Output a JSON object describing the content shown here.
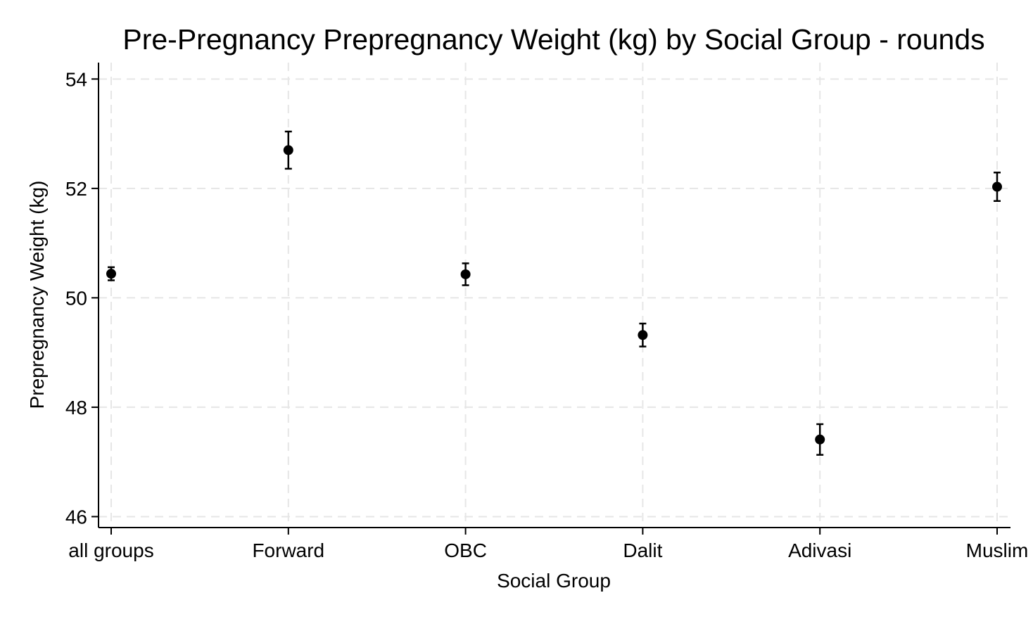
{
  "chart_data": {
    "type": "scatter",
    "title": "Pre-Pregnancy Prepregnancy Weight (kg) by Social Group - rounds",
    "xlabel": "Social Group",
    "ylabel": "Prepregnancy Weight (kg)",
    "categories": [
      "all groups",
      "Forward",
      "OBC",
      "Dalit",
      "Adivasi",
      "Muslim"
    ],
    "values": [
      50.44,
      52.7,
      50.43,
      49.32,
      47.41,
      52.03
    ],
    "ci_lower": [
      50.32,
      52.36,
      50.23,
      49.11,
      47.13,
      51.77
    ],
    "ci_upper": [
      50.56,
      53.04,
      50.63,
      49.53,
      47.69,
      52.29
    ],
    "ylim": [
      45.8,
      54.3
    ],
    "yticks": [
      46,
      48,
      50,
      52,
      54
    ],
    "ytick_labels": [
      "46",
      "48",
      "50",
      "52",
      "54"
    ],
    "grid": true,
    "legend": "none"
  }
}
